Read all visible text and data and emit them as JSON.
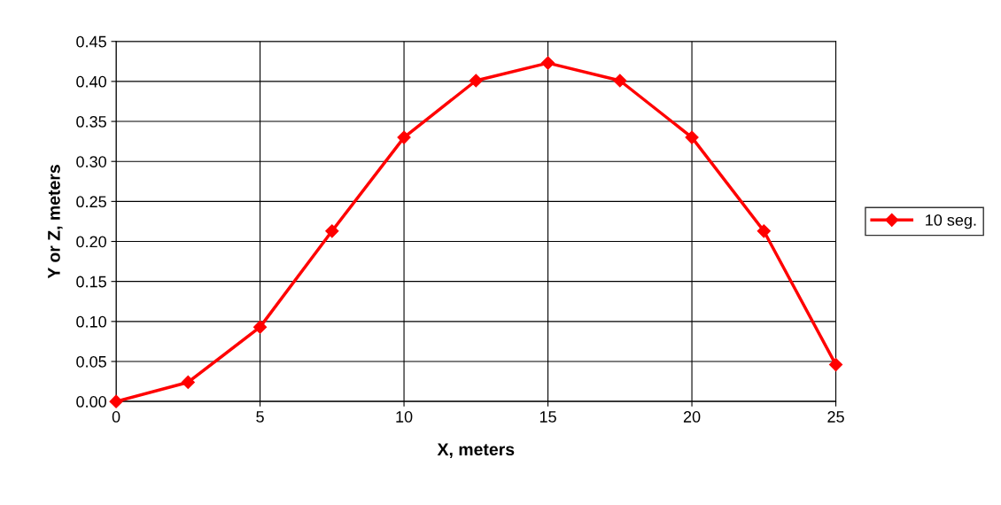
{
  "chart_data": {
    "type": "line",
    "xlabel": "X, meters",
    "ylabel": "Y or Z, meters",
    "x": [
      0,
      2.5,
      5,
      7.5,
      10,
      12.5,
      15,
      17.5,
      20,
      22.5,
      25
    ],
    "series": [
      {
        "name": "10 seg.",
        "color": "#ff0000",
        "values": [
          0,
          0.024,
          0.093,
          0.213,
          0.33,
          0.401,
          0.423,
          0.401,
          0.33,
          0.213,
          0.046
        ]
      }
    ],
    "xlim": [
      0,
      25
    ],
    "xticks": [
      0,
      5,
      10,
      15,
      20,
      25
    ],
    "ylim": [
      0,
      0.45
    ],
    "yticks": [
      {
        "value": 0,
        "label": "0.00"
      },
      {
        "value": 0.05,
        "label": "0.05"
      },
      {
        "value": 0.1,
        "label": "0.10"
      },
      {
        "value": 0.15,
        "label": "0.15"
      },
      {
        "value": 0.2,
        "label": "0.20"
      },
      {
        "value": 0.25,
        "label": "0.25"
      },
      {
        "value": 0.3,
        "label": "0.30"
      },
      {
        "value": 0.35,
        "label": "0.35"
      },
      {
        "value": 0.4,
        "label": "0.40"
      },
      {
        "value": 0.45,
        "label": "0.45"
      }
    ],
    "grid": true,
    "legend": "right",
    "marker": "diamond",
    "line_style": "solid"
  }
}
